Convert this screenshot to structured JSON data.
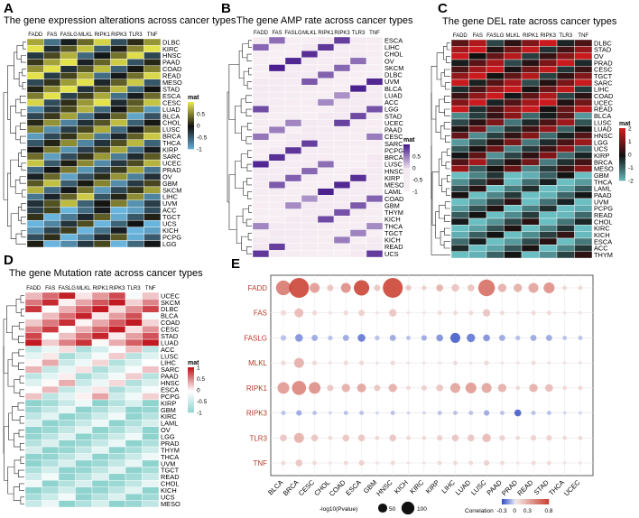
{
  "figure": {
    "panel_labels": [
      "A",
      "B",
      "C",
      "D",
      "E"
    ]
  },
  "colors": {
    "a_low": "#6ab5dd",
    "a_mid": "#111111",
    "a_high": "#e4e24b",
    "b_low": "#f7eff3",
    "b_mid": "#f3e8f1",
    "b_high": "#4a1e8e",
    "c_low": "#6abfc3",
    "c_mid": "#111111",
    "c_high": "#cb1a1e",
    "d_low": "#8fd3cf",
    "d_mid": "#ffffff",
    "d_high": "#c21a22",
    "e_neg": "#3a55c8",
    "e_pos": "#c93a2a"
  },
  "chart_data": [
    {
      "id": "A",
      "type": "heatmap",
      "title": "The gene expression alterations across cancer types",
      "columns": [
        "FADD",
        "FAS",
        "FASLG",
        "MLKL",
        "RIPK1",
        "RIPK3",
        "TLR3",
        "TNF"
      ],
      "rows": [
        "DLBC",
        "KIRC",
        "HNSC",
        "PAAD",
        "COAD",
        "READ",
        "MESO",
        "STAD",
        "ESCA",
        "CESC",
        "LUAD",
        "BLCA",
        "CHOL",
        "LUSC",
        "BRCA",
        "THCA",
        "KIRP",
        "SARC",
        "UCEC",
        "PRAD",
        "OV",
        "GBM",
        "SKCM",
        "LIHC",
        "UVM",
        "ACC",
        "TGCT",
        "UCS",
        "KICH",
        "PCPG",
        "LGG"
      ],
      "legend_title": "mat",
      "legend_ticks": [
        "0.5",
        "0",
        "-0.5",
        "-1"
      ],
      "range": [
        -1,
        1
      ]
    },
    {
      "id": "B",
      "type": "heatmap",
      "title": "The gene AMP rate across cancer types",
      "columns": [
        "FADD",
        "FAS",
        "FASLG",
        "MLKL",
        "RIPK1",
        "RIPK3",
        "TLR3",
        "TNF"
      ],
      "rows": [
        "ESCA",
        "LIHC",
        "CHOL",
        "OV",
        "SKCM",
        "DLBC",
        "UVM",
        "BLCA",
        "LUAD",
        "ACC",
        "LGG",
        "STAD",
        "UCEC",
        "PAAD",
        "CESC",
        "SARC",
        "PCPG",
        "BRCA",
        "LUSC",
        "HNSC",
        "KIRP",
        "MESO",
        "LAML",
        "COAD",
        "GBM",
        "THYM",
        "KICH",
        "THCA",
        "TGCT",
        "KICH",
        "READ",
        "UCS"
      ],
      "legend_title": "mat",
      "legend_ticks": [
        "0.5",
        "0",
        "-0.5",
        "-1"
      ],
      "range": [
        -1,
        1
      ]
    },
    {
      "id": "C",
      "type": "heatmap",
      "title": "The gene DEL rate across cancer types",
      "columns": [
        "FADD",
        "FAS",
        "FASLG",
        "MLKL",
        "RIPK1",
        "RIPK3",
        "TLR3",
        "TNF"
      ],
      "rows": [
        "DLBC",
        "STAD",
        "OV",
        "PRAD",
        "CESC",
        "TGCT",
        "SARC",
        "LIHC",
        "COAD",
        "UCEC",
        "READ",
        "BLCA",
        "LUSC",
        "LUAD",
        "HNSC",
        "LGG",
        "UCS",
        "KIRP",
        "BRCA",
        "MESO",
        "GBM",
        "THCA",
        "LAML",
        "PAAD",
        "UVM",
        "PCPG",
        "READ",
        "CHOL",
        "KIRC",
        "KICH",
        "ESCA",
        "ACC",
        "THYM"
      ],
      "legend_title": "mat",
      "legend_ticks": [
        "2",
        "1",
        "0",
        "-1",
        "-2"
      ],
      "range": [
        -2,
        2
      ]
    },
    {
      "id": "D",
      "type": "heatmap",
      "title": "The gene Mutation rate across cancer types",
      "columns": [
        "FADD",
        "FAS",
        "FASLG",
        "MLKL",
        "RIPK1",
        "RIPK3",
        "TLR3",
        "TNF"
      ],
      "rows": [
        "UCEC",
        "SKCM",
        "DLBC",
        "BLCA",
        "COAD",
        "CESC",
        "STAD",
        "LUAD",
        "ACC",
        "LUSC",
        "LIHC",
        "SARC",
        "PAAD",
        "HNSC",
        "ESCA",
        "PCPG",
        "KIRP",
        "GBM",
        "KIRC",
        "LAML",
        "OV",
        "LGG",
        "PRAD",
        "THYM",
        "THCA",
        "UVM",
        "TGCT",
        "READ",
        "CHOL",
        "KICH",
        "UCS",
        "MESO"
      ],
      "legend_title": "mat",
      "legend_ticks": [
        "1",
        "0.5",
        "0",
        "-0.5",
        "-1"
      ],
      "range": [
        -1,
        1
      ]
    },
    {
      "id": "E",
      "type": "scatter",
      "subtype": "bubble",
      "genes": [
        "FADD",
        "FAS",
        "FASLG",
        "MLKL",
        "RIPK1",
        "RIPK3",
        "TLR3",
        "TNF"
      ],
      "cancers": [
        "BLCA",
        "BRCA",
        "CESC",
        "CHOL",
        "COAD",
        "ESCA",
        "GBM",
        "HNSC",
        "KICH",
        "KIRC",
        "KIRP",
        "LIHC",
        "LUAD",
        "LUSC",
        "PAAD",
        "PRAD",
        "READ",
        "STAD",
        "THCA",
        "UCEC"
      ],
      "size_legend_title": "-log10(Pvalue)",
      "size_legend_values": [
        50,
        100
      ],
      "color_legend_title": "Correlation",
      "color_legend_ticks": [
        "-0.3",
        "0",
        "0.3",
        "0.8"
      ],
      "corr": [
        [
          0.55,
          0.8,
          0.4,
          0.2,
          0.45,
          0.8,
          0.2,
          0.8,
          0.2,
          0.15,
          0.3,
          0.2,
          0.2,
          0.6,
          0.3,
          0.3,
          0.35,
          0.45,
          0.1,
          0.1
        ],
        [
          0.1,
          0.25,
          0.1,
          0.05,
          0.1,
          0.15,
          0.05,
          0.2,
          0.05,
          0.05,
          0.1,
          0.1,
          0.1,
          0.2,
          0.1,
          0.05,
          0.1,
          0.1,
          0.05,
          0.05
        ],
        [
          -0.1,
          -0.2,
          -0.15,
          -0.1,
          -0.15,
          -0.25,
          -0.1,
          -0.15,
          -0.1,
          -0.15,
          -0.2,
          -0.35,
          -0.25,
          -0.2,
          -0.15,
          -0.1,
          -0.15,
          -0.15,
          -0.1,
          -0.1
        ],
        [
          0.1,
          0.3,
          0.1,
          0.05,
          0.1,
          0.1,
          0.05,
          0.1,
          0.05,
          0.05,
          0.05,
          0.1,
          0.05,
          0.1,
          0.05,
          0.05,
          0.1,
          0.05,
          0.05,
          0.05
        ],
        [
          0.4,
          0.5,
          0.45,
          0.2,
          0.3,
          0.35,
          0.2,
          0.3,
          0.1,
          0.15,
          0.2,
          0.35,
          0.4,
          0.35,
          0.3,
          0.1,
          0.3,
          0.25,
          0.1,
          0.1
        ],
        [
          -0.1,
          -0.15,
          -0.1,
          -0.05,
          -0.1,
          -0.1,
          -0.05,
          -0.1,
          -0.05,
          -0.05,
          -0.1,
          -0.1,
          -0.1,
          -0.15,
          -0.1,
          -0.3,
          -0.1,
          -0.1,
          -0.05,
          -0.05
        ],
        [
          0.2,
          0.3,
          0.2,
          0.1,
          0.2,
          0.2,
          0.1,
          0.2,
          0.1,
          0.1,
          0.15,
          0.2,
          0.2,
          0.25,
          0.15,
          0.1,
          0.15,
          0.15,
          0.1,
          0.1
        ],
        [
          0.1,
          0.2,
          0.1,
          0.05,
          0.1,
          0.15,
          0.05,
          0.1,
          0.05,
          0.05,
          0.1,
          0.1,
          0.1,
          0.15,
          0.1,
          0.05,
          0.1,
          0.1,
          0.05,
          0.05
        ]
      ],
      "logp": [
        [
          55,
          100,
          25,
          10,
          25,
          60,
          10,
          100,
          8,
          6,
          12,
          15,
          12,
          70,
          18,
          18,
          25,
          30,
          5,
          5
        ],
        [
          8,
          20,
          6,
          3,
          6,
          10,
          3,
          14,
          3,
          3,
          5,
          5,
          5,
          14,
          5,
          3,
          5,
          5,
          3,
          3
        ],
        [
          8,
          15,
          10,
          6,
          10,
          15,
          6,
          10,
          5,
          8,
          12,
          25,
          18,
          12,
          10,
          6,
          10,
          10,
          5,
          5
        ],
        [
          6,
          25,
          6,
          3,
          6,
          6,
          3,
          6,
          3,
          3,
          3,
          5,
          3,
          6,
          3,
          3,
          5,
          3,
          3,
          3
        ],
        [
          35,
          50,
          35,
          10,
          18,
          20,
          10,
          18,
          5,
          8,
          12,
          25,
          30,
          25,
          18,
          5,
          18,
          15,
          5,
          5
        ],
        [
          5,
          8,
          5,
          3,
          5,
          5,
          3,
          5,
          3,
          3,
          5,
          5,
          5,
          8,
          5,
          12,
          5,
          5,
          3,
          3
        ],
        [
          12,
          25,
          12,
          5,
          12,
          12,
          5,
          12,
          5,
          5,
          8,
          12,
          12,
          18,
          8,
          5,
          8,
          8,
          5,
          5
        ],
        [
          5,
          12,
          5,
          3,
          5,
          8,
          3,
          5,
          3,
          3,
          5,
          5,
          5,
          8,
          5,
          3,
          5,
          5,
          3,
          3
        ]
      ]
    }
  ]
}
